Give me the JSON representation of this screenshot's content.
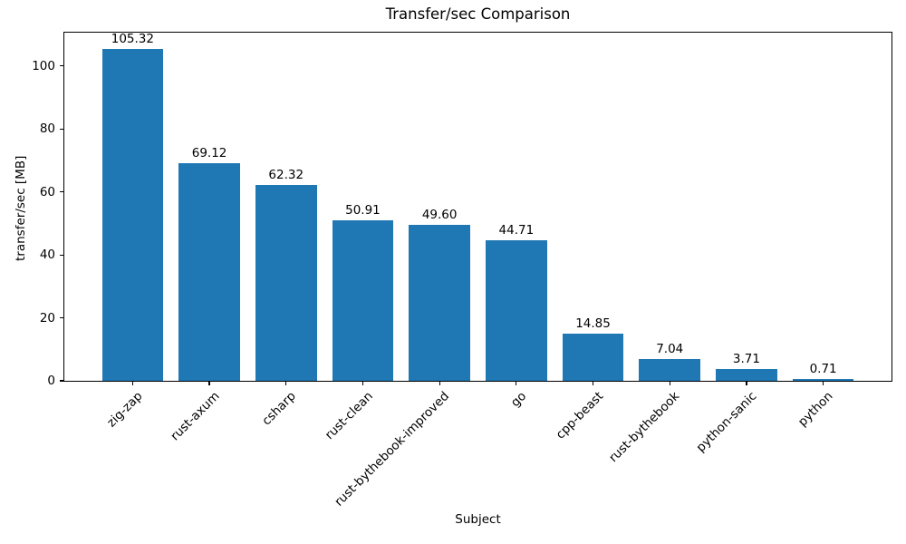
{
  "figure": {
    "background_color": "#ffffff",
    "text_color": "#000000"
  },
  "chart_data": {
    "type": "bar",
    "title": "Transfer/sec Comparison",
    "xlabel": "Subject",
    "ylabel": "transfer/sec [MB]",
    "categories": [
      "zig-zap",
      "rust-axum",
      "csharp",
      "rust-clean",
      "rust-bythebook-improved",
      "go",
      "cpp-beast",
      "rust-bythebook",
      "python-sanic",
      "python"
    ],
    "values": [
      105.32,
      69.12,
      62.32,
      50.91,
      49.6,
      44.71,
      14.85,
      7.04,
      3.71,
      0.71
    ],
    "value_labels": [
      "105.32",
      "69.12",
      "62.32",
      "50.91",
      "49.60",
      "44.71",
      "14.85",
      "7.04",
      "3.71",
      "0.71"
    ],
    "bar_color": "#1f77b4",
    "yticks": [
      0,
      20,
      40,
      60,
      80,
      100
    ],
    "ylim": [
      0,
      110.59
    ],
    "xlim": [
      -0.89,
      9.89
    ],
    "bar_width_units": 0.8,
    "x_tick_rotation_deg": 45,
    "grid": false,
    "legend": false
  }
}
